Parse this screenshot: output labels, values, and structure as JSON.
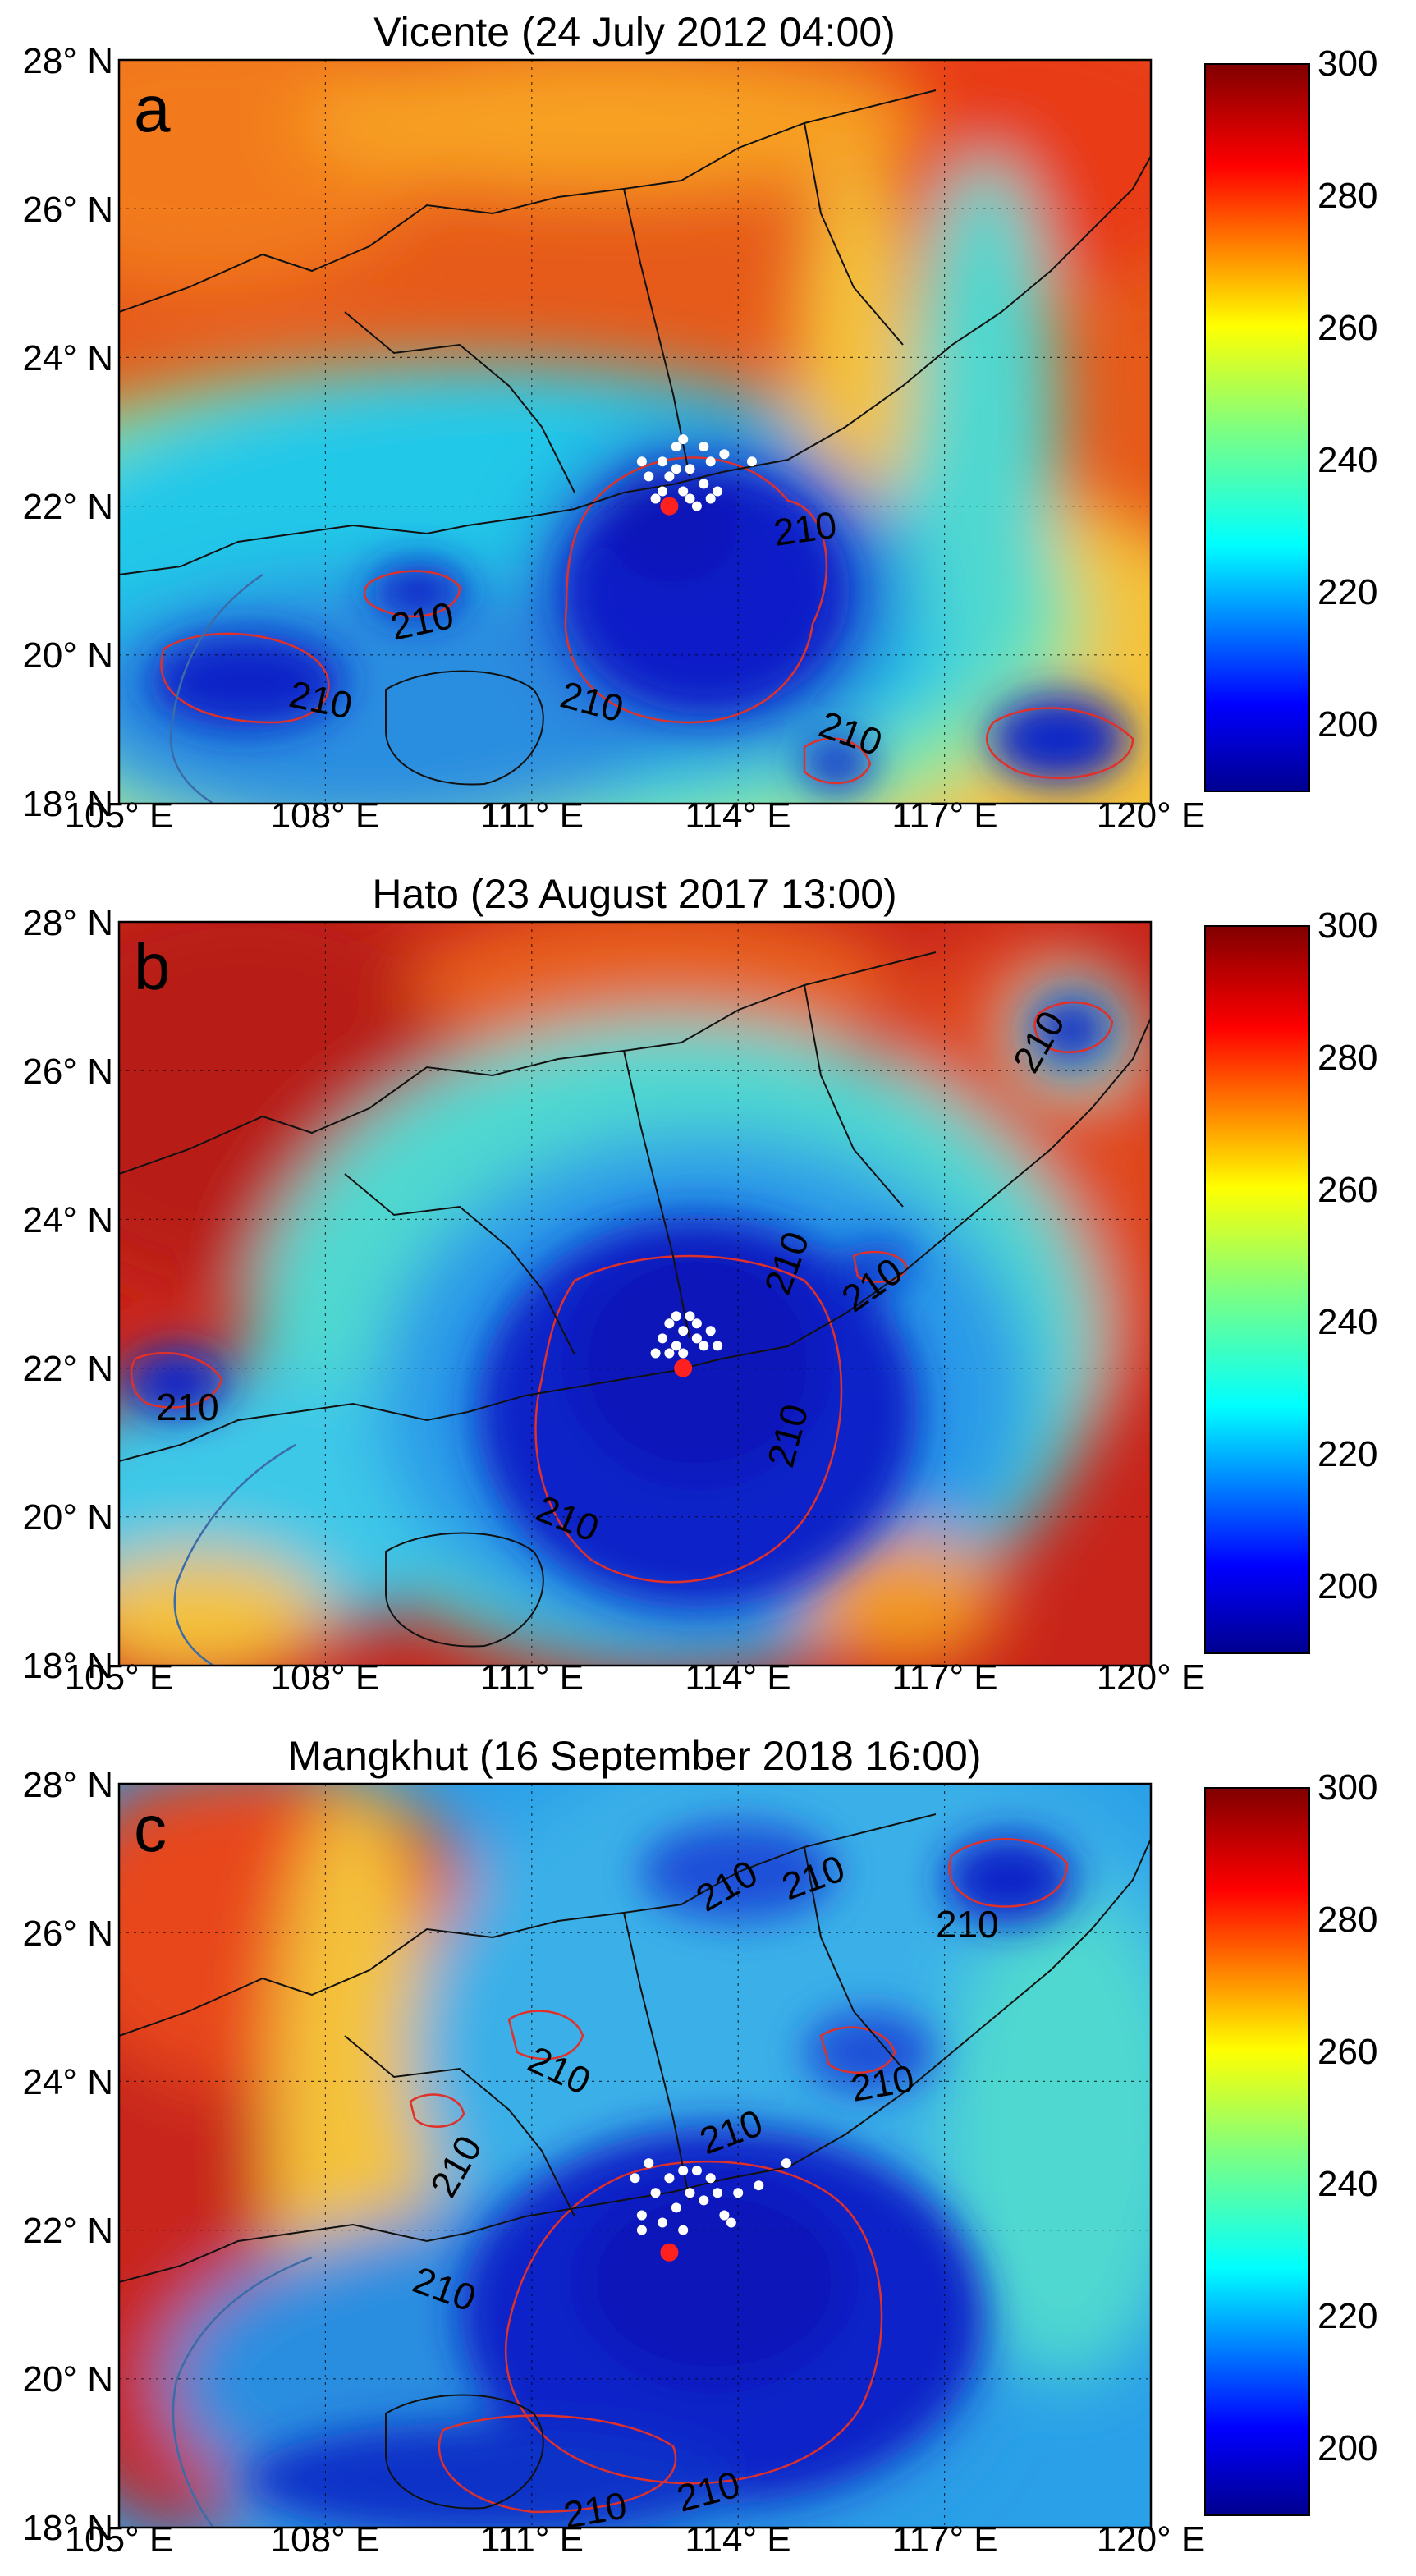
{
  "panels": [
    {
      "letter": "a",
      "title": "Vicente (24 July 2012 04:00)",
      "contour_labels": [
        "210",
        "210",
        "210",
        "210",
        "210"
      ],
      "colorbar_ticks": [
        "300",
        "280",
        "260",
        "240",
        "220",
        "200"
      ],
      "lat_ticks": [
        "28° N",
        "26° N",
        "24° N",
        "22° N",
        "20° N",
        "18° N"
      ],
      "lon_ticks": [
        "105° E",
        "108° E",
        "111° E",
        "114° E",
        "117° E",
        "120° E"
      ]
    },
    {
      "letter": "b",
      "title": "Hato (23 August 2017 13:00)",
      "contour_labels": [
        "210",
        "210",
        "210",
        "210",
        "210",
        "210"
      ],
      "colorbar_ticks": [
        "300",
        "280",
        "260",
        "240",
        "220",
        "200"
      ],
      "lat_ticks": [
        "28° N",
        "26° N",
        "24° N",
        "22° N",
        "20° N",
        "18° N"
      ],
      "lon_ticks": [
        "105° E",
        "108° E",
        "111° E",
        "114° E",
        "117° E",
        "120° E"
      ]
    },
    {
      "letter": "c",
      "title": "Mangkhut (16 September 2018 16:00)",
      "contour_labels": [
        "210",
        "210",
        "210",
        "210",
        "210",
        "210",
        "210",
        "210",
        "210",
        "210"
      ],
      "colorbar_ticks": [
        "300",
        "280",
        "260",
        "240",
        "220",
        "200"
      ],
      "lat_ticks": [
        "28° N",
        "26° N",
        "24° N",
        "22° N",
        "20° N",
        "18° N"
      ],
      "lon_ticks": [
        "105° E",
        "108° E",
        "111° E",
        "114° E",
        "117° E",
        "120° E"
      ]
    }
  ],
  "chart_data": [
    {
      "type": "heatmap",
      "title": "Vicente (24 July 2012 04:00)",
      "panel_label": "a",
      "xlim": [
        105,
        120
      ],
      "ylim": [
        18,
        28
      ],
      "x_ticks": [
        "105° E",
        "108° E",
        "111° E",
        "114° E",
        "117° E",
        "120° E"
      ],
      "y_ticks": [
        "28° N",
        "26° N",
        "24° N",
        "22° N",
        "20° N",
        "18° N"
      ],
      "colorbar": {
        "range": [
          190,
          300
        ],
        "ticks": [
          300,
          280,
          260,
          240,
          220,
          200
        ],
        "colormap": "jet"
      },
      "contour_level": 210,
      "contour_color": "#e0302a",
      "grid": true,
      "storm_center": {
        "lon": 113.0,
        "lat": 22.0,
        "color": "#ff2020"
      },
      "points_color": "#ffffff",
      "points": [
        [
          112.9,
          22.6
        ],
        [
          113.1,
          22.8
        ],
        [
          113.3,
          22.5
        ],
        [
          113.5,
          22.3
        ],
        [
          113.2,
          22.2
        ],
        [
          112.8,
          22.1
        ],
        [
          113.6,
          22.6
        ],
        [
          113.0,
          22.4
        ],
        [
          113.4,
          22.0
        ],
        [
          112.7,
          22.4
        ],
        [
          113.7,
          22.2
        ],
        [
          113.2,
          22.9
        ],
        [
          113.8,
          22.7
        ],
        [
          112.9,
          22.2
        ],
        [
          113.5,
          22.8
        ],
        [
          113.3,
          22.1
        ],
        [
          114.2,
          22.6
        ],
        [
          113.1,
          22.5
        ],
        [
          112.6,
          22.6
        ],
        [
          113.6,
          22.1
        ]
      ]
    },
    {
      "type": "heatmap",
      "title": "Hato (23 August 2017 13:00)",
      "panel_label": "b",
      "xlim": [
        105,
        120
      ],
      "ylim": [
        18,
        28
      ],
      "x_ticks": [
        "105° E",
        "108° E",
        "111° E",
        "114° E",
        "117° E",
        "120° E"
      ],
      "y_ticks": [
        "28° N",
        "26° N",
        "24° N",
        "22° N",
        "20° N",
        "18° N"
      ],
      "colorbar": {
        "range": [
          190,
          300
        ],
        "ticks": [
          300,
          280,
          260,
          240,
          220,
          200
        ],
        "colormap": "jet"
      },
      "contour_level": 210,
      "contour_color": "#e0302a",
      "grid": true,
      "storm_center": {
        "lon": 113.2,
        "lat": 22.0,
        "color": "#ff2020"
      },
      "points_color": "#ffffff",
      "points": [
        [
          113.0,
          22.6
        ],
        [
          113.2,
          22.5
        ],
        [
          113.4,
          22.4
        ],
        [
          113.1,
          22.3
        ],
        [
          113.3,
          22.7
        ],
        [
          113.5,
          22.3
        ],
        [
          112.9,
          22.4
        ],
        [
          113.6,
          22.5
        ],
        [
          113.2,
          22.2
        ],
        [
          113.0,
          22.2
        ],
        [
          113.4,
          22.6
        ],
        [
          112.8,
          22.2
        ],
        [
          113.7,
          22.3
        ],
        [
          113.1,
          22.7
        ]
      ]
    },
    {
      "type": "heatmap",
      "title": "Mangkhut (16 September 2018 16:00)",
      "panel_label": "c",
      "xlim": [
        105,
        120
      ],
      "ylim": [
        18,
        28
      ],
      "x_ticks": [
        "105° E",
        "108° E",
        "111° E",
        "114° E",
        "117° E",
        "120° E"
      ],
      "y_ticks": [
        "28° N",
        "26° N",
        "24° N",
        "22° N",
        "20° N",
        "18° N"
      ],
      "colorbar": {
        "range": [
          190,
          300
        ],
        "ticks": [
          300,
          280,
          260,
          240,
          220,
          200
        ],
        "colormap": "jet"
      },
      "contour_level": 210,
      "contour_color": "#e0302a",
      "grid": true,
      "storm_center": {
        "lon": 113.0,
        "lat": 21.7,
        "color": "#ff2020"
      },
      "points_color": "#ffffff",
      "points": [
        [
          112.7,
          22.9
        ],
        [
          113.0,
          22.7
        ],
        [
          113.3,
          22.5
        ],
        [
          113.5,
          22.4
        ],
        [
          113.1,
          22.3
        ],
        [
          112.8,
          22.5
        ],
        [
          113.6,
          22.7
        ],
        [
          113.8,
          22.2
        ],
        [
          113.2,
          22.0
        ],
        [
          112.6,
          22.2
        ],
        [
          114.0,
          22.5
        ],
        [
          113.4,
          22.8
        ],
        [
          112.9,
          22.1
        ],
        [
          114.3,
          22.6
        ],
        [
          114.7,
          22.9
        ],
        [
          113.7,
          22.5
        ],
        [
          112.5,
          22.7
        ],
        [
          113.2,
          22.8
        ],
        [
          113.9,
          22.1
        ],
        [
          112.6,
          22.0
        ]
      ]
    }
  ]
}
